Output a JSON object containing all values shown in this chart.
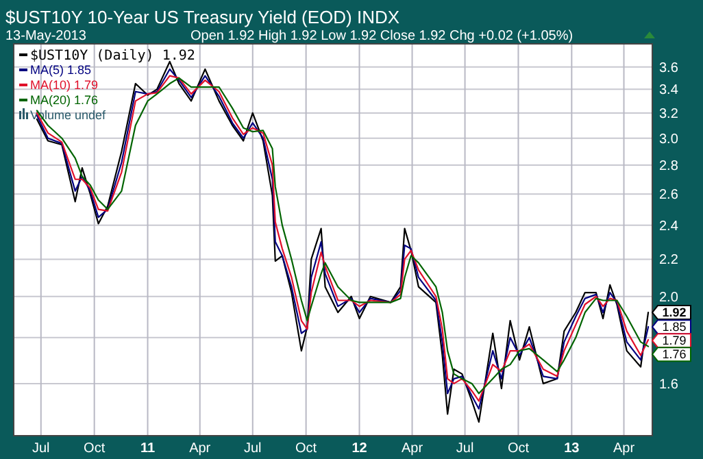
{
  "chart_data": {
    "type": "line",
    "title": "$UST10Y 10-Year US Treasury Yield (EOD) INDX",
    "subtitle": "13-May-2013",
    "annotations": [
      "Open 1.92 High 1.92 Low 1.92 Close 1.92 Chg +0.02 (+1.05%)",
      "Volume undef",
      {
        "text": "1.92",
        "x": "2013-05-13",
        "y": 1.92
      },
      {
        "text": "1.85",
        "x": "2013-05-13",
        "y": 1.85
      },
      {
        "text": "1.79",
        "x": "2013-05-13",
        "y": 1.79
      },
      {
        "text": "1.76",
        "x": "2013-05-13",
        "y": 1.76
      }
    ],
    "x": [
      "2010-06-24",
      "2010-07-13",
      "2010-08-06",
      "2010-08-29",
      "2010-09-10",
      "2010-09-24",
      "2010-10-08",
      "2010-10-24",
      "2010-11-17",
      "2010-12-11",
      "2011-01-01",
      "2011-01-17",
      "2011-02-08",
      "2011-02-24",
      "2011-03-17",
      "2011-04-10",
      "2011-05-04",
      "2011-05-27",
      "2011-06-15",
      "2011-07-01",
      "2011-07-19",
      "2011-08-04",
      "2011-08-09",
      "2011-08-21",
      "2011-09-06",
      "2011-09-23",
      "2011-10-03",
      "2011-10-10",
      "2011-10-27",
      "2011-11-03",
      "2011-11-25",
      "2011-12-18",
      "2012-01-01",
      "2012-01-20",
      "2012-02-24",
      "2012-03-12",
      "2012-03-19",
      "2012-03-30",
      "2012-04-12",
      "2012-05-12",
      "2012-05-23",
      "2012-06-01",
      "2012-06-12",
      "2012-06-26",
      "2012-07-13",
      "2012-07-25",
      "2012-08-18",
      "2012-09-02",
      "2012-09-17",
      "2012-10-03",
      "2012-10-20",
      "2012-11-13",
      "2012-12-07",
      "2012-12-19",
      "2013-01-08",
      "2013-01-24",
      "2013-02-12",
      "2013-02-24",
      "2013-03-08",
      "2013-03-20",
      "2013-04-06",
      "2013-04-30",
      "2013-05-13"
    ],
    "series": [
      {
        "name": "$UST10Y (Daily) 1.92",
        "color": "#000000",
        "values": [
          3.15,
          2.98,
          2.95,
          2.55,
          2.78,
          2.6,
          2.41,
          2.52,
          2.9,
          3.45,
          3.35,
          3.4,
          3.65,
          3.45,
          3.3,
          3.58,
          3.3,
          3.1,
          2.98,
          3.2,
          2.98,
          2.59,
          2.19,
          2.22,
          2.02,
          1.74,
          1.85,
          2.2,
          2.38,
          2.05,
          1.92,
          2.0,
          1.89,
          2.0,
          1.97,
          2.05,
          2.38,
          2.25,
          2.05,
          1.97,
          1.72,
          1.48,
          1.66,
          1.64,
          1.53,
          1.45,
          1.82,
          1.58,
          1.88,
          1.7,
          1.85,
          1.6,
          1.62,
          1.83,
          1.92,
          2.02,
          2.02,
          1.89,
          2.06,
          1.96,
          1.74,
          1.67,
          1.92
        ]
      },
      {
        "name": "MA(5) 1.85",
        "color": "#000080",
        "values": [
          3.18,
          3.0,
          2.96,
          2.62,
          2.72,
          2.62,
          2.45,
          2.5,
          2.82,
          3.38,
          3.36,
          3.38,
          3.58,
          3.48,
          3.33,
          3.52,
          3.34,
          3.12,
          3.0,
          3.12,
          3.0,
          2.7,
          2.3,
          2.22,
          2.05,
          1.82,
          1.84,
          2.1,
          2.3,
          2.12,
          1.95,
          1.99,
          1.92,
          1.99,
          1.97,
          2.03,
          2.28,
          2.26,
          2.1,
          1.98,
          1.78,
          1.56,
          1.62,
          1.63,
          1.55,
          1.5,
          1.74,
          1.62,
          1.8,
          1.72,
          1.8,
          1.63,
          1.62,
          1.78,
          1.9,
          1.99,
          2.01,
          1.92,
          2.02,
          1.97,
          1.78,
          1.7,
          1.85
        ]
      },
      {
        "name": "MA(10) 1.79",
        "color": "#e0102a",
        "values": [
          3.2,
          3.04,
          2.97,
          2.7,
          2.7,
          2.64,
          2.5,
          2.49,
          2.75,
          3.3,
          3.36,
          3.37,
          3.52,
          3.5,
          3.36,
          3.48,
          3.38,
          3.16,
          3.03,
          3.08,
          3.04,
          2.8,
          2.42,
          2.26,
          2.1,
          1.88,
          1.84,
          2.02,
          2.24,
          2.16,
          1.98,
          1.98,
          1.95,
          1.98,
          1.97,
          2.01,
          2.2,
          2.25,
          2.14,
          2.0,
          1.84,
          1.62,
          1.6,
          1.62,
          1.57,
          1.53,
          1.68,
          1.65,
          1.74,
          1.74,
          1.77,
          1.66,
          1.63,
          1.74,
          1.86,
          1.96,
          2.0,
          1.95,
          1.99,
          1.98,
          1.83,
          1.72,
          1.79
        ]
      },
      {
        "name": "MA(20) 1.76",
        "color": "#006400",
        "values": [
          3.22,
          3.1,
          3.0,
          2.85,
          2.72,
          2.66,
          2.56,
          2.5,
          2.62,
          3.1,
          3.3,
          3.36,
          3.45,
          3.5,
          3.42,
          3.42,
          3.42,
          3.24,
          3.08,
          3.05,
          3.06,
          2.92,
          2.65,
          2.4,
          2.2,
          1.98,
          1.88,
          1.95,
          2.12,
          2.18,
          2.05,
          1.98,
          1.97,
          1.97,
          1.97,
          1.99,
          2.1,
          2.22,
          2.18,
          2.05,
          1.92,
          1.74,
          1.64,
          1.62,
          1.6,
          1.56,
          1.62,
          1.66,
          1.68,
          1.74,
          1.75,
          1.7,
          1.65,
          1.7,
          1.8,
          1.92,
          1.99,
          1.98,
          1.98,
          1.98,
          1.9,
          1.78,
          1.76
        ]
      }
    ],
    "xlim": [
      "2010-05-15",
      "2013-05-20"
    ],
    "xticks": [
      {
        "value": "2010-07-01",
        "label": "Jul"
      },
      {
        "value": "2010-10-01",
        "label": "Oct"
      },
      {
        "value": "2011-01-01",
        "label": "11"
      },
      {
        "value": "2011-04-01",
        "label": "Apr"
      },
      {
        "value": "2011-07-01",
        "label": "Jul"
      },
      {
        "value": "2011-10-01",
        "label": "Oct"
      },
      {
        "value": "2012-01-01",
        "label": "12"
      },
      {
        "value": "2012-04-01",
        "label": "Apr"
      },
      {
        "value": "2012-07-01",
        "label": "Jul"
      },
      {
        "value": "2012-10-01",
        "label": "Oct"
      },
      {
        "value": "2013-01-01",
        "label": "13"
      },
      {
        "value": "2013-04-01",
        "label": "Apr"
      }
    ],
    "ylim": [
      1.4,
      3.82
    ],
    "yticks": [
      1.6,
      {
        "value": 1.8,
        "label": null
      },
      {
        "value": 2,
        "label": "2.0"
      },
      2.2,
      2.4,
      2.6,
      2.8,
      {
        "value": 3,
        "label": "3.0"
      },
      3.2,
      3.4,
      3.6
    ],
    "log": true,
    "grid": true,
    "legend": "top left",
    "marker": "none",
    "line_style": "solid"
  }
}
